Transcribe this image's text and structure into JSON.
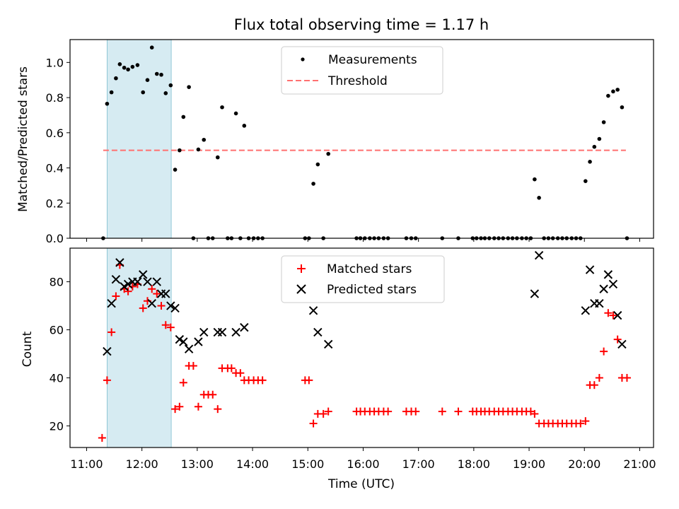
{
  "chart_data": {
    "type": "scatter",
    "title": "Flux total observing time = 1.17 h",
    "xlabel": "Time (UTC)",
    "x_unit": "hours (UTC)",
    "xlim": [
      10.7,
      21.25
    ],
    "x_tick_values": [
      11,
      12,
      13,
      14,
      15,
      16,
      17,
      18,
      19,
      20,
      21
    ],
    "x_tick_labels": [
      "11:00",
      "12:00",
      "13:00",
      "14:00",
      "15:00",
      "16:00",
      "17:00",
      "18:00",
      "19:00",
      "20:00",
      "21:00"
    ],
    "shaded_region": {
      "x_start": 11.37,
      "x_end": 12.53
    },
    "panels": [
      {
        "name": "ratio",
        "ylabel": "Matched/Predicted stars",
        "ylim": [
          0,
          1.13
        ],
        "y_tick_values": [
          0.0,
          0.2,
          0.4,
          0.6,
          0.8,
          1.0
        ],
        "y_tick_labels": [
          "0.0",
          "0.2",
          "0.4",
          "0.6",
          "0.8",
          "1.0"
        ],
        "legend": [
          "Measurements",
          "Threshold"
        ],
        "threshold": {
          "y": 0.5,
          "x_range": [
            11.3,
            20.75
          ],
          "color": "#ff7070"
        },
        "series": [
          {
            "name": "Measurements",
            "marker": "dot",
            "color": "#000000",
            "points": [
              [
                11.3,
                0.0
              ],
              [
                11.37,
                0.765
              ],
              [
                11.45,
                0.83
              ],
              [
                11.53,
                0.91
              ],
              [
                11.6,
                0.99
              ],
              [
                11.68,
                0.97
              ],
              [
                11.75,
                0.96
              ],
              [
                11.83,
                0.975
              ],
              [
                11.92,
                0.985
              ],
              [
                12.02,
                0.83
              ],
              [
                12.1,
                0.9
              ],
              [
                12.18,
                1.085
              ],
              [
                12.27,
                0.935
              ],
              [
                12.35,
                0.93
              ],
              [
                12.43,
                0.825
              ],
              [
                12.52,
                0.87
              ],
              [
                12.6,
                0.39
              ],
              [
                12.68,
                0.5
              ],
              [
                12.75,
                0.69
              ],
              [
                12.85,
                0.86
              ],
              [
                12.93,
                0.0
              ],
              [
                13.02,
                0.505
              ],
              [
                13.12,
                0.56
              ],
              [
                13.2,
                0.0
              ],
              [
                13.28,
                0.0
              ],
              [
                13.37,
                0.46
              ],
              [
                13.45,
                0.745
              ],
              [
                13.55,
                0.0
              ],
              [
                13.62,
                0.0
              ],
              [
                13.7,
                0.71
              ],
              [
                13.78,
                0.0
              ],
              [
                13.85,
                0.64
              ],
              [
                13.93,
                0.0
              ],
              [
                14.02,
                0.0
              ],
              [
                14.1,
                0.0
              ],
              [
                14.18,
                0.0
              ],
              [
                14.95,
                0.0
              ],
              [
                15.02,
                0.0
              ],
              [
                15.1,
                0.31
              ],
              [
                15.18,
                0.42
              ],
              [
                15.28,
                0.0
              ],
              [
                15.37,
                0.48
              ],
              [
                15.88,
                0.0
              ],
              [
                15.95,
                0.0
              ],
              [
                16.03,
                0.0
              ],
              [
                16.12,
                0.0
              ],
              [
                16.2,
                0.0
              ],
              [
                16.28,
                0.0
              ],
              [
                16.37,
                0.0
              ],
              [
                16.45,
                0.0
              ],
              [
                16.78,
                0.0
              ],
              [
                16.87,
                0.0
              ],
              [
                16.95,
                0.0
              ],
              [
                17.43,
                0.0
              ],
              [
                17.72,
                0.0
              ],
              [
                17.98,
                0.0
              ],
              [
                18.05,
                0.0
              ],
              [
                18.13,
                0.0
              ],
              [
                18.2,
                0.0
              ],
              [
                18.28,
                0.0
              ],
              [
                18.37,
                0.0
              ],
              [
                18.45,
                0.0
              ],
              [
                18.53,
                0.0
              ],
              [
                18.62,
                0.0
              ],
              [
                18.7,
                0.0
              ],
              [
                18.78,
                0.0
              ],
              [
                18.87,
                0.0
              ],
              [
                18.95,
                0.0
              ],
              [
                19.03,
                0.0
              ],
              [
                19.1,
                0.335
              ],
              [
                19.18,
                0.23
              ],
              [
                19.27,
                0.0
              ],
              [
                19.35,
                0.0
              ],
              [
                19.43,
                0.0
              ],
              [
                19.52,
                0.0
              ],
              [
                19.6,
                0.0
              ],
              [
                19.68,
                0.0
              ],
              [
                19.77,
                0.0
              ],
              [
                19.85,
                0.0
              ],
              [
                19.93,
                0.0
              ],
              [
                20.02,
                0.325
              ],
              [
                20.1,
                0.435
              ],
              [
                20.18,
                0.52
              ],
              [
                20.27,
                0.565
              ],
              [
                20.35,
                0.66
              ],
              [
                20.43,
                0.81
              ],
              [
                20.52,
                0.835
              ],
              [
                20.6,
                0.845
              ],
              [
                20.68,
                0.745
              ],
              [
                20.77,
                0.0
              ]
            ]
          }
        ]
      },
      {
        "name": "counts",
        "ylabel": "Count",
        "ylim": [
          11,
          94
        ],
        "y_tick_values": [
          20,
          40,
          60,
          80
        ],
        "y_tick_labels": [
          "20",
          "40",
          "60",
          "80"
        ],
        "legend": [
          "Matched stars",
          "Predicted stars"
        ],
        "series": [
          {
            "name": "Matched stars",
            "marker": "plus",
            "color": "#ff0000",
            "points": [
              [
                11.28,
                15
              ],
              [
                11.37,
                39
              ],
              [
                11.45,
                59
              ],
              [
                11.53,
                74
              ],
              [
                11.6,
                87
              ],
              [
                11.68,
                77
              ],
              [
                11.75,
                76
              ],
              [
                11.83,
                78
              ],
              [
                11.92,
                79
              ],
              [
                12.02,
                69
              ],
              [
                12.1,
                72
              ],
              [
                12.18,
                77
              ],
              [
                12.27,
                75
              ],
              [
                12.35,
                70
              ],
              [
                12.43,
                62
              ],
              [
                12.52,
                61
              ],
              [
                12.6,
                27
              ],
              [
                12.68,
                28
              ],
              [
                12.75,
                38
              ],
              [
                12.85,
                45
              ],
              [
                12.93,
                45
              ],
              [
                13.02,
                28
              ],
              [
                13.12,
                33
              ],
              [
                13.2,
                33
              ],
              [
                13.28,
                33
              ],
              [
                13.37,
                27
              ],
              [
                13.45,
                44
              ],
              [
                13.55,
                44
              ],
              [
                13.62,
                44
              ],
              [
                13.7,
                42
              ],
              [
                13.78,
                42
              ],
              [
                13.85,
                39
              ],
              [
                13.93,
                39
              ],
              [
                14.02,
                39
              ],
              [
                14.1,
                39
              ],
              [
                14.18,
                39
              ],
              [
                14.95,
                39
              ],
              [
                15.02,
                39
              ],
              [
                15.1,
                21
              ],
              [
                15.18,
                25
              ],
              [
                15.28,
                25
              ],
              [
                15.37,
                26
              ],
              [
                15.88,
                26
              ],
              [
                15.95,
                26
              ],
              [
                16.03,
                26
              ],
              [
                16.12,
                26
              ],
              [
                16.2,
                26
              ],
              [
                16.28,
                26
              ],
              [
                16.37,
                26
              ],
              [
                16.45,
                26
              ],
              [
                16.78,
                26
              ],
              [
                16.87,
                26
              ],
              [
                16.95,
                26
              ],
              [
                17.43,
                26
              ],
              [
                17.72,
                26
              ],
              [
                17.98,
                26
              ],
              [
                18.05,
                26
              ],
              [
                18.13,
                26
              ],
              [
                18.2,
                26
              ],
              [
                18.28,
                26
              ],
              [
                18.37,
                26
              ],
              [
                18.45,
                26
              ],
              [
                18.53,
                26
              ],
              [
                18.62,
                26
              ],
              [
                18.7,
                26
              ],
              [
                18.78,
                26
              ],
              [
                18.87,
                26
              ],
              [
                18.95,
                26
              ],
              [
                19.03,
                26
              ],
              [
                19.1,
                25
              ],
              [
                19.18,
                21
              ],
              [
                19.27,
                21
              ],
              [
                19.35,
                21
              ],
              [
                19.43,
                21
              ],
              [
                19.52,
                21
              ],
              [
                19.6,
                21
              ],
              [
                19.68,
                21
              ],
              [
                19.77,
                21
              ],
              [
                19.85,
                21
              ],
              [
                19.93,
                21
              ],
              [
                20.02,
                22
              ],
              [
                20.1,
                37
              ],
              [
                20.18,
                37
              ],
              [
                20.27,
                40
              ],
              [
                20.35,
                51
              ],
              [
                20.43,
                67
              ],
              [
                20.52,
                66
              ],
              [
                20.6,
                56
              ],
              [
                20.68,
                40
              ],
              [
                20.77,
                40
              ]
            ]
          },
          {
            "name": "Predicted stars",
            "marker": "x",
            "color": "#000000",
            "points": [
              [
                11.37,
                51
              ],
              [
                11.45,
                71
              ],
              [
                11.53,
                81
              ],
              [
                11.6,
                88
              ],
              [
                11.68,
                78
              ],
              [
                11.75,
                79
              ],
              [
                11.83,
                80
              ],
              [
                11.92,
                80
              ],
              [
                12.02,
                83
              ],
              [
                12.1,
                80
              ],
              [
                12.18,
                71
              ],
              [
                12.27,
                80
              ],
              [
                12.35,
                75
              ],
              [
                12.43,
                75
              ],
              [
                12.52,
                70
              ],
              [
                12.6,
                69
              ],
              [
                12.68,
                56
              ],
              [
                12.75,
                55
              ],
              [
                12.85,
                52
              ],
              [
                13.02,
                55
              ],
              [
                13.12,
                59
              ],
              [
                13.37,
                59
              ],
              [
                13.45,
                59
              ],
              [
                13.7,
                59
              ],
              [
                13.85,
                61
              ],
              [
                15.1,
                68
              ],
              [
                15.18,
                59
              ],
              [
                15.37,
                54
              ],
              [
                19.1,
                75
              ],
              [
                19.18,
                91
              ],
              [
                20.02,
                68
              ],
              [
                20.1,
                85
              ],
              [
                20.18,
                71
              ],
              [
                20.27,
                71
              ],
              [
                20.35,
                77
              ],
              [
                20.43,
                83
              ],
              [
                20.52,
                79
              ],
              [
                20.6,
                66
              ],
              [
                20.68,
                54
              ]
            ]
          }
        ]
      }
    ],
    "shade_color": "#add8e6"
  }
}
